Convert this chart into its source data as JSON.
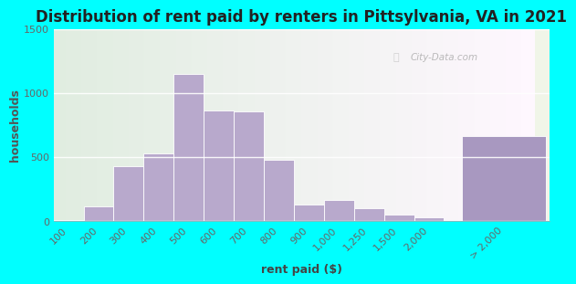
{
  "title": "Distribution of rent paid by renters in Pittsylvania, VA in 2021",
  "xlabel": "rent paid ($)",
  "ylabel": "households",
  "bar_labels": [
    "100",
    "200",
    "300",
    "400",
    "500",
    "600",
    "700",
    "800",
    "900",
    "1,000",
    "1,250",
    "1,500",
    "2,000",
    "> 2,000"
  ],
  "bar_values": [
    10,
    115,
    425,
    530,
    1145,
    860,
    855,
    480,
    130,
    160,
    100,
    50,
    30,
    660
  ],
  "bar_color": "#b8a9cc",
  "last_bar_color": "#a898c0",
  "background_outer": "#00ffff",
  "ylim": [
    0,
    1500
  ],
  "yticks": [
    0,
    500,
    1000,
    1500
  ],
  "title_fontsize": 12,
  "axis_label_fontsize": 9,
  "tick_label_fontsize": 8,
  "tick_color": "#666666",
  "watermark": "City-Data.com"
}
